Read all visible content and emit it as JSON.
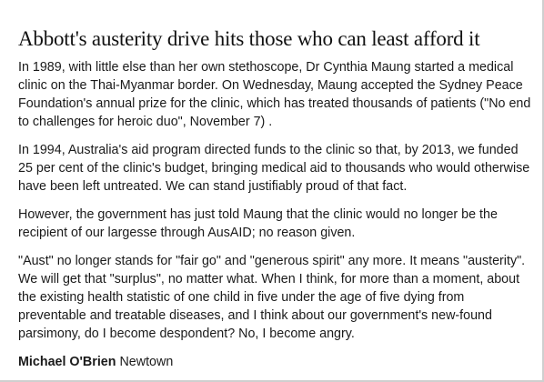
{
  "article": {
    "headline": "Abbott's austerity drive hits those who can least afford it",
    "paragraphs": [
      "In 1989, with little else than her own stethoscope, Dr Cynthia Maung started a medical clinic on the Thai-Myanmar border. On Wednesday, Maung accepted the Sydney Peace Foundation's annual prize for the clinic, which has treated thousands of patients (\"No end to challenges for heroic duo\", November 7) .",
      "In 1994, Australia's aid program directed funds to the clinic so that, by 2013, we funded 25 per cent of the clinic's budget, bringing medical aid to thousands who would otherwise have been left untreated. We can stand justifiably proud of that fact.",
      "However, the government has just told Maung that the clinic would no longer be the recipient of our largesse through AusAID; no reason given.",
      "\"Aust\" no longer stands for \"fair go\" and \"generous spirit\" any more. It means \"austerity\". We will get that \"surplus\", no matter what. When I think, for more than a moment, about the existing health statistic of one child in five under the age of five dying from preventable and treatable diseases, and I think about our government's new-found parsimony, do I become despondent? No, I become angry."
    ],
    "author": {
      "name": "Michael O'Brien",
      "location": "Newtown"
    }
  }
}
